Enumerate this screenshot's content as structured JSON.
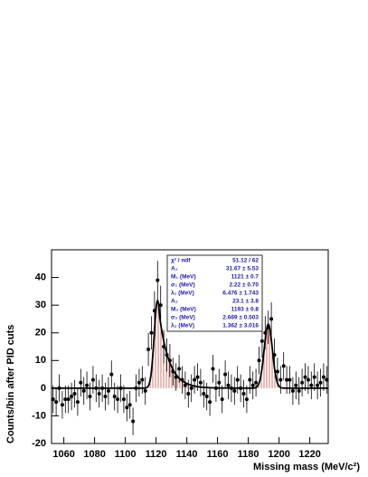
{
  "chart_data": {
    "type": "scatter",
    "x_label": "Missing mass (MeV/c²)",
    "y_label": "Counts/bin after PID cuts",
    "xlim": [
      1052,
      1232
    ],
    "ylim": [
      -20,
      50
    ],
    "xticks": [
      1060,
      1080,
      1100,
      1120,
      1140,
      1160,
      1180,
      1200,
      1220
    ],
    "yticks": [
      -20,
      -10,
      0,
      10,
      20,
      30,
      40
    ],
    "color": "#000000",
    "fit_color": "#000000",
    "fill_color": "#c0392b",
    "x": [
      1053,
      1055,
      1057,
      1059,
      1061,
      1063,
      1065,
      1067,
      1069,
      1071,
      1073,
      1075,
      1077,
      1079,
      1081,
      1083,
      1085,
      1087,
      1089,
      1091,
      1093,
      1095,
      1097,
      1099,
      1101,
      1103,
      1105,
      1107,
      1109,
      1111,
      1113,
      1115,
      1117,
      1119,
      1121,
      1123,
      1125,
      1127,
      1129,
      1131,
      1133,
      1135,
      1137,
      1139,
      1141,
      1143,
      1145,
      1147,
      1149,
      1151,
      1153,
      1155,
      1157,
      1159,
      1161,
      1163,
      1165,
      1167,
      1169,
      1171,
      1173,
      1175,
      1177,
      1179,
      1181,
      1183,
      1185,
      1187,
      1189,
      1191,
      1193,
      1195,
      1197,
      1199,
      1201,
      1203,
      1205,
      1207,
      1209,
      1211,
      1213,
      1215,
      1217,
      1219,
      1221,
      1223,
      1225,
      1227,
      1229,
      1231
    ],
    "values": [
      -4,
      -5,
      0,
      -6,
      -4,
      -4,
      -3,
      -2,
      -5,
      2,
      -1,
      1,
      -3,
      3,
      0,
      -2,
      0,
      -3,
      -1,
      5,
      -3,
      -4,
      0,
      -4,
      -7,
      -6,
      -12,
      0,
      2,
      3,
      -1,
      14,
      20,
      28,
      39,
      30,
      15,
      12,
      10,
      6,
      4,
      7,
      3,
      1,
      -2,
      0,
      3,
      4,
      2,
      -2,
      -3,
      -5,
      7,
      0,
      2,
      -4,
      5,
      1,
      0,
      -1,
      3,
      0,
      -2,
      -4,
      3,
      1,
      2,
      10,
      17,
      20,
      22,
      25,
      12,
      6,
      3,
      8,
      3,
      3,
      -1,
      1,
      -1,
      2,
      4,
      3,
      1,
      4,
      1,
      2,
      4,
      3
    ],
    "errors": [
      5,
      5,
      5,
      5,
      5,
      5,
      5,
      5,
      5,
      5,
      5,
      5,
      5,
      5,
      5,
      5,
      5,
      5,
      5,
      5,
      5,
      5,
      5,
      5,
      5,
      5,
      5,
      5,
      5,
      5,
      5,
      6,
      6,
      7,
      7,
      7,
      6,
      6,
      6,
      5,
      5,
      5,
      5,
      5,
      5,
      5,
      5,
      5,
      5,
      5,
      5,
      5,
      5,
      5,
      5,
      5,
      5,
      5,
      5,
      5,
      5,
      5,
      5,
      5,
      5,
      5,
      5,
      5,
      6,
      6,
      6,
      6,
      6,
      5,
      5,
      5,
      5,
      5,
      5,
      5,
      5,
      5,
      5,
      5,
      5,
      5,
      5,
      5,
      5,
      5
    ],
    "stats": [
      {
        "name": "χ² / ndf",
        "label": "51.12 / 62"
      },
      {
        "name": "A₁",
        "value": 31.67,
        "error": 5.53,
        "label": "31.67 ± 5.53"
      },
      {
        "name": "M₁ (MeV)",
        "value": 1121,
        "error": 0.7,
        "label": "1121 ± 0.7"
      },
      {
        "name": "σ₁ (MeV)",
        "value": 2.22,
        "error": 0.7,
        "label": "2.22 ± 0.70"
      },
      {
        "name": "λ₁ (MeV)",
        "value": 6.476,
        "error": 1.743,
        "label": "6.476 ± 1.743"
      },
      {
        "name": "A₂",
        "value": 23.1,
        "error": 3.8,
        "label": "23.1 ± 3.8"
      },
      {
        "name": "M₂ (MeV)",
        "value": 1193,
        "error": 0.8,
        "label": "1193 ± 0.8"
      },
      {
        "name": "σ₂ (MeV)",
        "value": 2.669,
        "error": 0.503,
        "label": "2.669 ± 0.503"
      },
      {
        "name": "λ₂ (MeV)",
        "value": 1.362,
        "error": 3.016,
        "label": "1.362 ± 3.016"
      }
    ]
  }
}
